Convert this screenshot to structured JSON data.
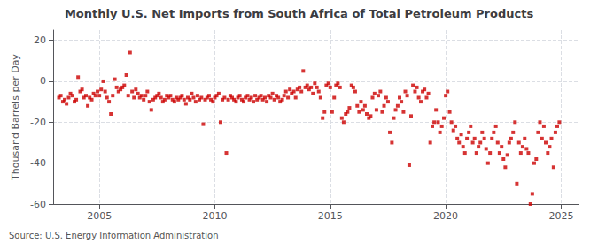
{
  "chart_data": {
    "type": "scatter",
    "title": "Monthly U.S. Net Imports from South Africa of Total Petroleum Products",
    "ylabel": "Thousand Barrels per Day",
    "annotations": [
      "Source: U.S. Energy Information Administration"
    ],
    "color": "#cc0000",
    "marker": "square",
    "grid": true,
    "xlim": [
      2003.0,
      2025.75
    ],
    "xticks": [
      2005,
      2010,
      2015,
      2020,
      2025
    ],
    "ylim": [
      -60,
      25
    ],
    "yticks": [
      -60,
      -40,
      -20,
      0,
      20
    ],
    "x": [
      2003.25,
      2003.33,
      2003.42,
      2003.5,
      2003.58,
      2003.67,
      2003.75,
      2003.83,
      2003.92,
      2004.0,
      2004.08,
      2004.17,
      2004.25,
      2004.33,
      2004.42,
      2004.5,
      2004.58,
      2004.67,
      2004.75,
      2004.83,
      2004.92,
      2005.0,
      2005.08,
      2005.17,
      2005.25,
      2005.33,
      2005.42,
      2005.5,
      2005.58,
      2005.67,
      2005.75,
      2005.83,
      2005.92,
      2006.0,
      2006.08,
      2006.17,
      2006.25,
      2006.33,
      2006.42,
      2006.5,
      2006.58,
      2006.67,
      2006.75,
      2006.83,
      2006.92,
      2007.0,
      2007.08,
      2007.17,
      2007.25,
      2007.33,
      2007.42,
      2007.5,
      2007.58,
      2007.67,
      2007.75,
      2007.83,
      2007.92,
      2008.0,
      2008.08,
      2008.17,
      2008.25,
      2008.33,
      2008.42,
      2008.5,
      2008.58,
      2008.67,
      2008.75,
      2008.83,
      2008.92,
      2009.0,
      2009.08,
      2009.17,
      2009.25,
      2009.33,
      2009.42,
      2009.5,
      2009.58,
      2009.67,
      2009.75,
      2009.83,
      2009.92,
      2010.0,
      2010.08,
      2010.17,
      2010.25,
      2010.33,
      2010.42,
      2010.5,
      2010.58,
      2010.67,
      2010.75,
      2010.83,
      2010.92,
      2011.0,
      2011.08,
      2011.17,
      2011.25,
      2011.33,
      2011.42,
      2011.5,
      2011.58,
      2011.67,
      2011.75,
      2011.83,
      2011.92,
      2012.0,
      2012.08,
      2012.17,
      2012.25,
      2012.33,
      2012.42,
      2012.5,
      2012.58,
      2012.67,
      2012.75,
      2012.83,
      2012.92,
      2013.0,
      2013.08,
      2013.17,
      2013.25,
      2013.33,
      2013.42,
      2013.5,
      2013.58,
      2013.67,
      2013.75,
      2013.83,
      2013.92,
      2014.0,
      2014.08,
      2014.17,
      2014.25,
      2014.33,
      2014.42,
      2014.5,
      2014.58,
      2014.67,
      2014.75,
      2014.83,
      2014.92,
      2015.0,
      2015.08,
      2015.17,
      2015.25,
      2015.33,
      2015.42,
      2015.5,
      2015.58,
      2015.67,
      2015.75,
      2015.83,
      2015.92,
      2016.0,
      2016.08,
      2016.17,
      2016.25,
      2016.33,
      2016.42,
      2016.5,
      2016.58,
      2016.67,
      2016.75,
      2016.83,
      2016.92,
      2017.0,
      2017.08,
      2017.17,
      2017.25,
      2017.33,
      2017.42,
      2017.5,
      2017.58,
      2017.67,
      2017.75,
      2017.83,
      2017.92,
      2018.0,
      2018.08,
      2018.17,
      2018.25,
      2018.33,
      2018.42,
      2018.5,
      2018.58,
      2018.67,
      2018.75,
      2018.83,
      2018.92,
      2019.0,
      2019.08,
      2019.17,
      2019.25,
      2019.33,
      2019.42,
      2019.5,
      2019.58,
      2019.67,
      2019.75,
      2019.83,
      2019.92,
      2020.0,
      2020.08,
      2020.17,
      2020.25,
      2020.33,
      2020.42,
      2020.5,
      2020.58,
      2020.67,
      2020.75,
      2020.83,
      2020.92,
      2021.0,
      2021.08,
      2021.17,
      2021.25,
      2021.33,
      2021.42,
      2021.5,
      2021.58,
      2021.67,
      2021.75,
      2021.83,
      2021.92,
      2022.0,
      2022.08,
      2022.17,
      2022.25,
      2022.33,
      2022.42,
      2022.5,
      2022.58,
      2022.67,
      2022.75,
      2022.83,
      2022.92,
      2023.0,
      2023.08,
      2023.17,
      2023.25,
      2023.33,
      2023.42,
      2023.5,
      2023.58,
      2023.67,
      2023.75,
      2023.83,
      2023.92,
      2024.0,
      2024.08,
      2024.17,
      2024.25,
      2024.33,
      2024.42,
      2024.5,
      2024.58,
      2024.67,
      2024.75,
      2024.83,
      2024.92
    ],
    "values": [
      -8,
      -7,
      -10,
      -9,
      -11,
      -8,
      -6,
      -7,
      -10,
      -9,
      2,
      -5,
      -4,
      -8,
      -7,
      -12,
      -8,
      -9,
      -6,
      -7,
      -5,
      -7,
      -4,
      0,
      -5,
      -8,
      -10,
      -16,
      -7,
      1,
      -3,
      -5,
      -4,
      -3,
      -2,
      3,
      -7,
      14,
      -5,
      -8,
      -4,
      -6,
      -8,
      -7,
      -9,
      -7,
      -5,
      -10,
      -14,
      -9,
      -8,
      -7,
      -6,
      -8,
      -10,
      -9,
      -7,
      -8,
      -7,
      -9,
      -10,
      -8,
      -9,
      -8,
      -7,
      -9,
      -11,
      -8,
      -9,
      -6,
      -8,
      -10,
      -7,
      -9,
      -8,
      -21,
      -9,
      -8,
      -7,
      -9,
      -10,
      -8,
      -7,
      -6,
      -20,
      -9,
      -8,
      -35,
      -9,
      -7,
      -8,
      -9,
      -10,
      -8,
      -7,
      -9,
      -10,
      -8,
      -7,
      -9,
      -8,
      -10,
      -7,
      -9,
      -8,
      -7,
      -9,
      -8,
      -10,
      -7,
      -8,
      -6,
      -9,
      -7,
      -8,
      -10,
      -9,
      -7,
      -5,
      -8,
      -4,
      -6,
      -5,
      -8,
      -4,
      -3,
      -5,
      5,
      -3,
      -2,
      -4,
      -3,
      -6,
      -1,
      -3,
      -5,
      -8,
      -18,
      -15,
      -2,
      -1,
      -3,
      -15,
      -8,
      -2,
      -1,
      -3,
      -18,
      -20,
      -16,
      -15,
      -13,
      -2,
      -3,
      -5,
      -12,
      -15,
      -10,
      -14,
      -12,
      -16,
      -18,
      -17,
      -8,
      -6,
      -14,
      -7,
      -5,
      -15,
      -12,
      -8,
      -10,
      -25,
      -30,
      -18,
      -14,
      -12,
      -8,
      -10,
      -15,
      -5,
      -7,
      -41,
      -17,
      -2,
      -5,
      -3,
      -8,
      -10,
      -5,
      -4,
      -8,
      -6,
      -30,
      -22,
      -20,
      -14,
      -20,
      -25,
      -22,
      -18,
      -7,
      -5,
      -15,
      -20,
      -24,
      -22,
      -28,
      -30,
      -26,
      -32,
      -35,
      -28,
      -25,
      -22,
      -30,
      -28,
      -35,
      -32,
      -30,
      -25,
      -28,
      -33,
      -40,
      -35,
      -28,
      -25,
      -22,
      -30,
      -35,
      -32,
      -38,
      -42,
      -36,
      -30,
      -28,
      -25,
      -20,
      -50,
      -30,
      -35,
      -32,
      -28,
      -33,
      -35,
      -60,
      -55,
      -40,
      -38,
      -25,
      -20,
      -28,
      -22,
      -30,
      -35,
      -32,
      -28,
      -42,
      -25,
      -22,
      -20
    ]
  }
}
